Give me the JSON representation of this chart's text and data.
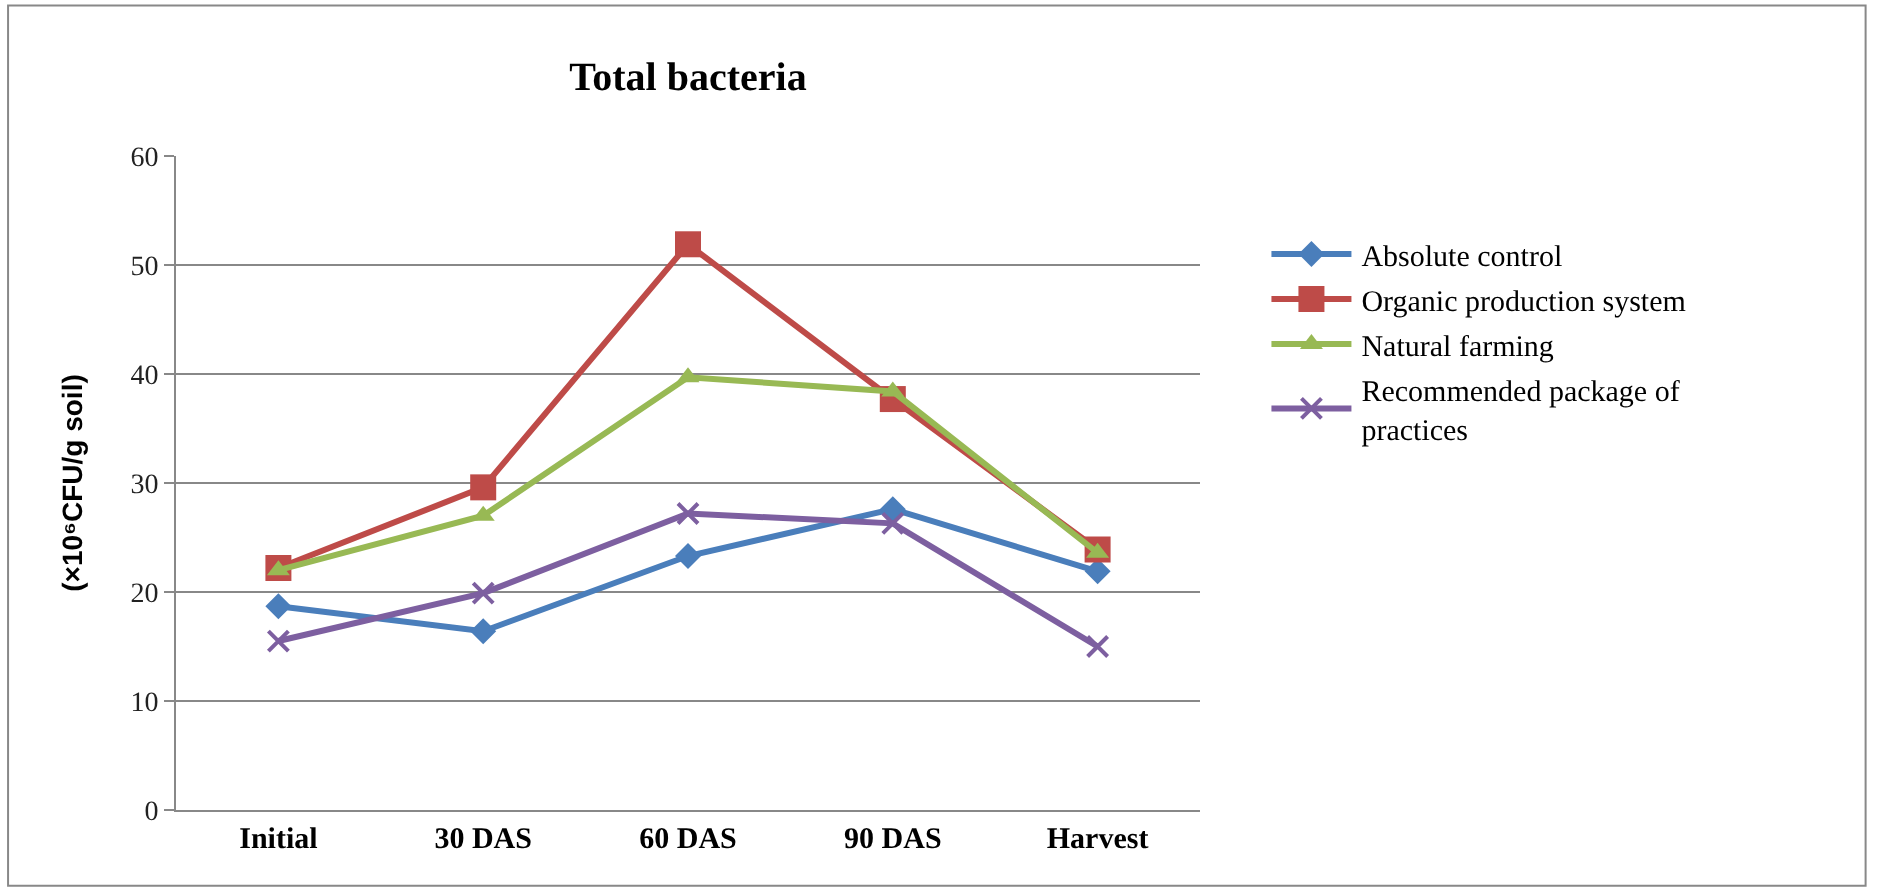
{
  "chart_data": {
    "type": "line",
    "title": "Total bacteria",
    "ylabel": "(×10⁶CFU/g soil)",
    "categories": [
      "Initial",
      "30 DAS",
      "60 DAS",
      "90 DAS",
      "Harvest"
    ],
    "series": [
      {
        "name": "Absolute control",
        "color": "#4a7ebb",
        "marker": "diamond",
        "values": [
          18.7,
          16.4,
          23.3,
          27.6,
          21.9
        ]
      },
      {
        "name": "Organic production system",
        "color": "#be4b48",
        "marker": "square",
        "values": [
          22.2,
          29.6,
          51.9,
          37.7,
          23.9
        ]
      },
      {
        "name": "Natural farming",
        "color": "#98b954",
        "marker": "triangle",
        "values": [
          22.0,
          27.0,
          39.7,
          38.4,
          23.6
        ]
      },
      {
        "name": "Recommended package of practices",
        "color": "#7d5fa0",
        "marker": "cross",
        "values": [
          15.5,
          19.9,
          27.2,
          26.3,
          15.0
        ]
      }
    ],
    "ylim": [
      0,
      60
    ],
    "yticks": [
      0,
      10,
      20,
      30,
      40,
      50,
      60
    ],
    "grid": "y",
    "legend": "right"
  }
}
